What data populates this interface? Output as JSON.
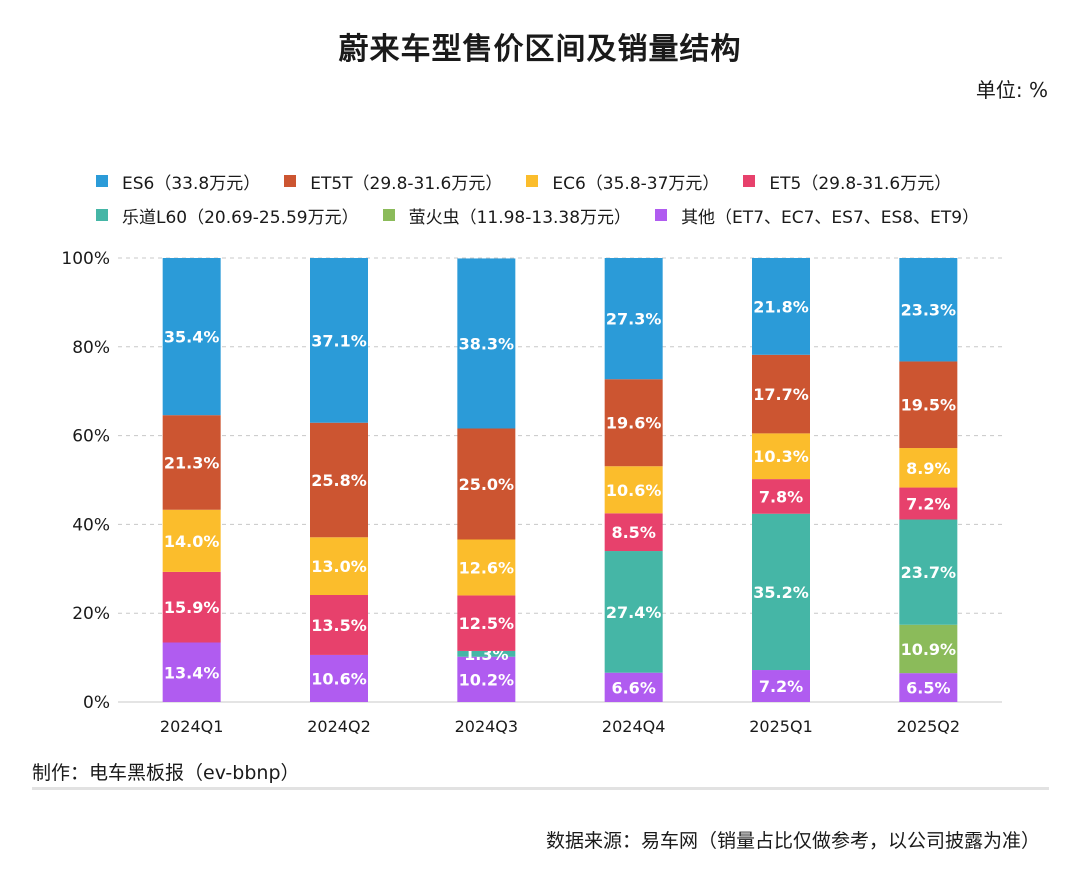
{
  "title": "蔚来车型售价区间及销量结构",
  "unit": "单位: %",
  "credit": "制作：电车黑板报（ev-bbnp）",
  "source": "数据来源：易车网（销量占比仅做参考，以公司披露为准）",
  "chart_data": {
    "type": "bar",
    "stacked": true,
    "categories": [
      "2024Q1",
      "2024Q2",
      "2024Q3",
      "2024Q4",
      "2025Q1",
      "2025Q2"
    ],
    "y_ticks": [
      "0%",
      "20%",
      "40%",
      "60%",
      "80%",
      "100%"
    ],
    "ylim": [
      0,
      100
    ],
    "grid": "horizontal dashed",
    "legend_position": "top",
    "series": [
      {
        "name": "其他（ET7、EC7、ES7、ES8、ET9）",
        "color": "#b05cf0",
        "values": [
          13.4,
          10.6,
          10.2,
          6.6,
          7.2,
          6.5
        ],
        "labels": [
          "13.4%",
          "10.6%",
          "10.2%",
          "6.6%",
          "7.2%",
          "6.5%"
        ]
      },
      {
        "name": "萤火虫（11.98-13.38万元）",
        "color": "#8bbb5a",
        "values": [
          0,
          0,
          0,
          0,
          0,
          10.9
        ],
        "labels": [
          "",
          "",
          "",
          "",
          "",
          "10.9%"
        ]
      },
      {
        "name": "乐道L60（20.69-25.59万元）",
        "color": "#45b6a6",
        "values": [
          0,
          0,
          1.3,
          27.4,
          35.2,
          23.7
        ],
        "labels": [
          "",
          "",
          "1.3%",
          "27.4%",
          "35.2%",
          "23.7%"
        ]
      },
      {
        "name": "ET5（29.8-31.6万元）",
        "color": "#e7416c",
        "values": [
          15.9,
          13.5,
          12.5,
          8.5,
          7.8,
          7.2
        ],
        "labels": [
          "15.9%",
          "13.5%",
          "12.5%",
          "8.5%",
          "7.8%",
          "7.2%"
        ]
      },
      {
        "name": "EC6（35.8-37万元）",
        "color": "#fbbd2c",
        "values": [
          14.0,
          13.0,
          12.6,
          10.6,
          10.3,
          8.9
        ],
        "labels": [
          "14.0%",
          "13.0%",
          "12.6%",
          "10.6%",
          "10.3%",
          "8.9%"
        ]
      },
      {
        "name": "ET5T（29.8-31.6万元）",
        "color": "#cc5531",
        "values": [
          21.3,
          25.8,
          25.0,
          19.6,
          17.7,
          19.5
        ],
        "labels": [
          "21.3%",
          "25.8%",
          "25.0%",
          "19.6%",
          "17.7%",
          "19.5%"
        ]
      },
      {
        "name": "ES6（33.8万元）",
        "color": "#2b9bd8",
        "values": [
          35.4,
          37.1,
          38.3,
          27.3,
          21.8,
          23.3
        ],
        "labels": [
          "35.4%",
          "37.1%",
          "38.3%",
          "27.3%",
          "21.8%",
          "23.3%"
        ]
      }
    ]
  }
}
